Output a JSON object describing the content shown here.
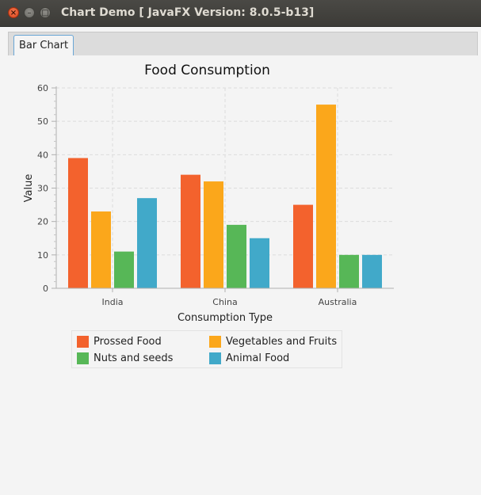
{
  "window": {
    "title": "Chart Demo [ JavaFX Version: 8.0.5-b13]",
    "controls": [
      "close-icon",
      "minimize-icon",
      "maximize-icon"
    ]
  },
  "tabs": [
    {
      "label": "Bar Chart",
      "selected": true
    }
  ],
  "colors": {
    "Prossed Food": "#f3622d",
    "Vegetables and Fruits": "#fba71b",
    "Nuts and seeds": "#57b757",
    "Animal Food": "#41a9c9"
  },
  "chart_data": {
    "type": "bar",
    "title": "Food Consumption",
    "xlabel": "Consumption Type",
    "ylabel": "Value",
    "categories": [
      "India",
      "China",
      "Australia"
    ],
    "ylim": [
      0,
      60
    ],
    "yticks": [
      0,
      10,
      20,
      30,
      40,
      50,
      60
    ],
    "grid": true,
    "legend_position": "bottom",
    "series": [
      {
        "name": "Prossed Food",
        "values": [
          39,
          34,
          25
        ]
      },
      {
        "name": "Vegetables and Fruits",
        "values": [
          23,
          32,
          55
        ]
      },
      {
        "name": "Nuts and seeds",
        "values": [
          11,
          19,
          10
        ]
      },
      {
        "name": "Animal Food",
        "values": [
          27,
          15,
          10
        ]
      }
    ]
  }
}
